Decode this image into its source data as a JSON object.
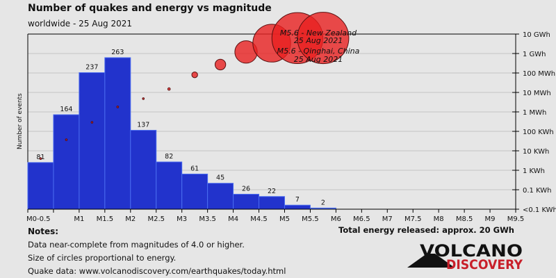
{
  "header": {
    "title": "Number of quakes and energy vs magnitude",
    "subtitle": "worldwide - 25 Aug 2021"
  },
  "notes": {
    "heading": "Notes:",
    "lines": [
      "Data near-complete from magnitudes of 4.0 or higher.",
      "Size of circles proportional to energy.",
      "Quake data: www.volcanodiscovery.com/earthquakes/today.html"
    ]
  },
  "total_energy": "Total energy released: approx. 20 GWh",
  "logo": {
    "line1": "VOLCANO",
    "line2": "DISCOVERY"
  },
  "colors": {
    "bar": "#2233cc",
    "bar_last": "#4466ee",
    "circle": "#e82020",
    "background": "#e6e6e6"
  },
  "chart_data": {
    "type": "bar",
    "title": "Number of quakes and energy vs magnitude",
    "ylabel": "Number of events",
    "ylim": [
      0,
      304
    ],
    "x_tick_labels": [
      "M0-0.5",
      "",
      "M1",
      "M1.5",
      "M2",
      "M2.5",
      "M3",
      "M3.5",
      "M4",
      "M4.5",
      "M5",
      "M5.5",
      "M6",
      "M6.5",
      "M7",
      "M7.5",
      "M8",
      "M8.5",
      "M9",
      "M9.5"
    ],
    "categories": [
      "M0-0.5",
      "M0.5-1",
      "M1-1.5",
      "M1.5-2",
      "M2-2.5",
      "M2.5-3",
      "M3-3.5",
      "M3.5-4",
      "M4-4.5",
      "M4.5-5",
      "M5-5.5",
      "M5.5-6"
    ],
    "values": [
      81,
      164,
      237,
      263,
      137,
      82,
      61,
      45,
      26,
      22,
      7,
      2
    ],
    "energy_series": {
      "name": "Energy (Wh, log scale)",
      "values_wh": [
        4000,
        37000,
        290000,
        1800000,
        4800000,
        15000000,
        80000000,
        270000000,
        1200000000,
        3400000000,
        6200000000,
        6300000000
      ]
    },
    "energy_axis": {
      "labels": [
        "10 GWh",
        "1 GWh",
        "100 MWh",
        "10 MWh",
        "1 MWh",
        "100 KWh",
        "10 KWh",
        "1 KWh",
        "0.1 KWh",
        "<0.1 KWh"
      ],
      "log10_wh": [
        10,
        9,
        8,
        7,
        6,
        5,
        4,
        3,
        2,
        1
      ]
    },
    "annotations": [
      {
        "text": "M5.6 - New Zealand",
        "date": "25 Aug 2021"
      },
      {
        "text": "M5.6 - Qinghai, China",
        "date": "25 Aug 2021"
      }
    ]
  }
}
